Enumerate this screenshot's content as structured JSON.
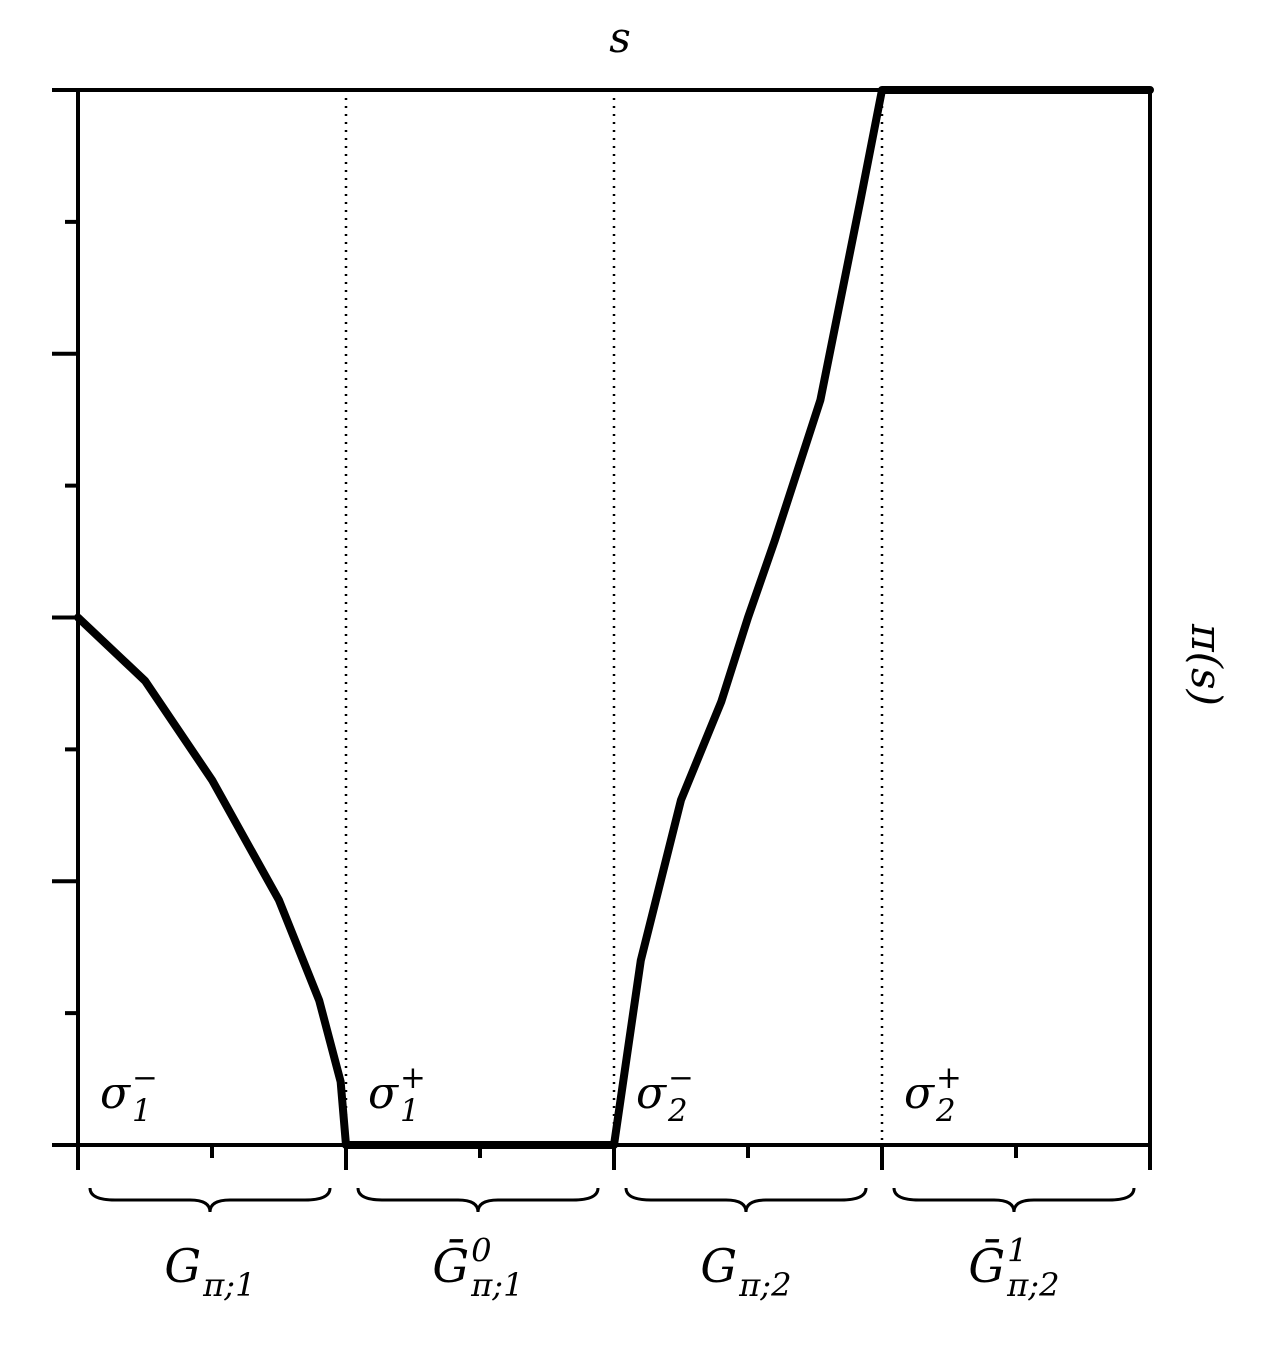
{
  "chart_data": {
    "type": "line",
    "x_label": "s",
    "y_label": "π(s)",
    "xlim": [
      0,
      4
    ],
    "ylim": [
      0,
      1
    ],
    "xticks": [
      0,
      0.5,
      1,
      1.5,
      2,
      2.5,
      3,
      3.5,
      4
    ],
    "yticks": [
      0,
      0.125,
      0.25,
      0.375,
      0.5,
      0.625,
      0.75,
      0.875,
      1
    ],
    "vlines": [
      1,
      2,
      3
    ],
    "series": [
      {
        "color": "#000000",
        "x": [
          0,
          0.25,
          0.5,
          0.75,
          0.9,
          0.98,
          1,
          2,
          2.1,
          2.25,
          2.4,
          2.5,
          2.6,
          2.77,
          2.92,
          3,
          4
        ],
        "values": [
          0.5,
          0.44,
          0.346,
          0.232,
          0.137,
          0.06,
          0,
          0,
          0.175,
          0.327,
          0.42,
          0.5,
          0.573,
          0.706,
          0.896,
          1,
          1
        ]
      }
    ],
    "annotations": [
      {
        "text": "σ",
        "sub": "1",
        "sup": "−"
      },
      {
        "text": "σ",
        "sub": "1",
        "sup": "+"
      },
      {
        "text": "σ",
        "sub": "2",
        "sup": "−"
      },
      {
        "text": "σ",
        "sub": "2",
        "sup": "+"
      }
    ],
    "brace_labels": [
      {
        "text": "G",
        "sub": "π;1"
      },
      {
        "text": "Ḡ",
        "sub": "π;1",
        "sup": "0"
      },
      {
        "text": "G",
        "sub": "π;2"
      },
      {
        "text": "Ḡ",
        "sub": "π;2",
        "sup": "1"
      }
    ]
  }
}
